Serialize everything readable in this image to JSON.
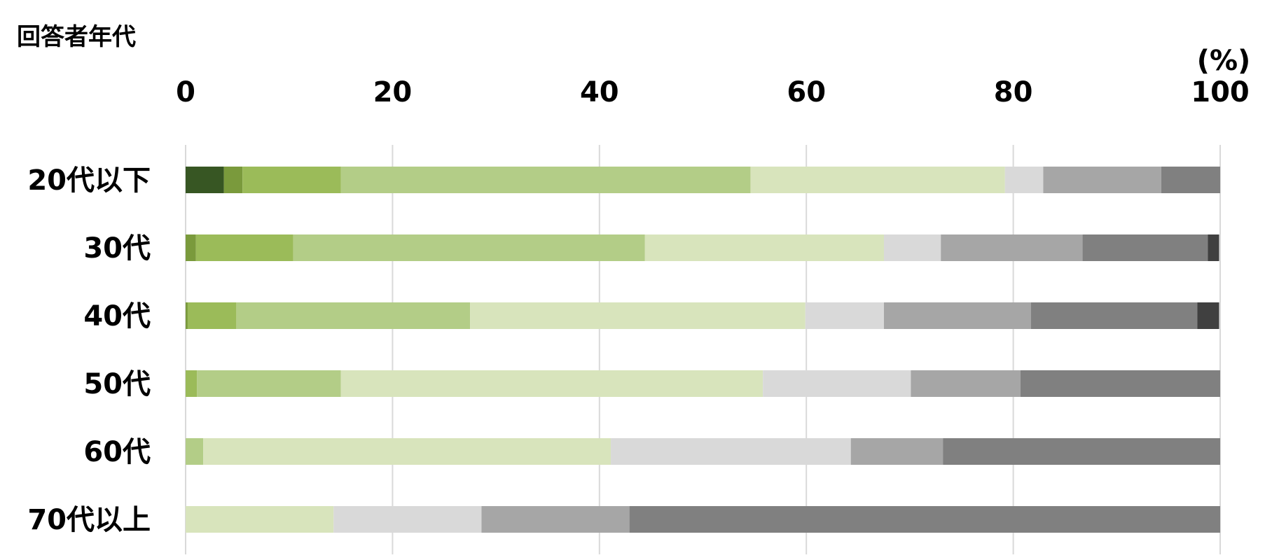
{
  "chart_data": {
    "type": "bar",
    "orientation": "horizontal",
    "stacked": true,
    "title": "回答者年代",
    "unit_label": "(%)",
    "xlim": [
      0,
      100
    ],
    "x_ticks": [
      "0",
      "20",
      "40",
      "60",
      "80",
      "100"
    ],
    "grid": true,
    "legend": "none",
    "categories": [
      "20代以下",
      "30代",
      "40代",
      "50代",
      "60代",
      "70代以上"
    ],
    "series": [
      {
        "color": "#375623",
        "values": [
          3.7,
          0.0,
          0.0,
          0.0,
          0.0,
          0.0
        ]
      },
      {
        "color": "#7a9a3c",
        "values": [
          1.8,
          1.0,
          0.2,
          0.0,
          0.0,
          0.0
        ]
      },
      {
        "color": "#9bbb59",
        "values": [
          9.5,
          9.4,
          4.7,
          1.1,
          0.0,
          0.0
        ]
      },
      {
        "color": "#b3cd87",
        "values": [
          39.6,
          34.0,
          22.6,
          13.9,
          1.7,
          0.0
        ]
      },
      {
        "color": "#d8e4bc",
        "values": [
          24.6,
          23.1,
          32.4,
          40.8,
          39.4,
          14.3
        ]
      },
      {
        "color": "#d9d9d9",
        "values": [
          3.7,
          5.5,
          7.6,
          14.3,
          23.2,
          14.3
        ]
      },
      {
        "color": "#a6a6a6",
        "values": [
          11.4,
          13.7,
          14.2,
          10.6,
          8.9,
          14.3
        ]
      },
      {
        "color": "#808080",
        "values": [
          5.7,
          12.1,
          16.1,
          19.3,
          26.8,
          57.1
        ]
      },
      {
        "color": "#404040",
        "values": [
          0.0,
          1.1,
          2.1,
          0.0,
          0.0,
          0.0
        ]
      }
    ]
  }
}
